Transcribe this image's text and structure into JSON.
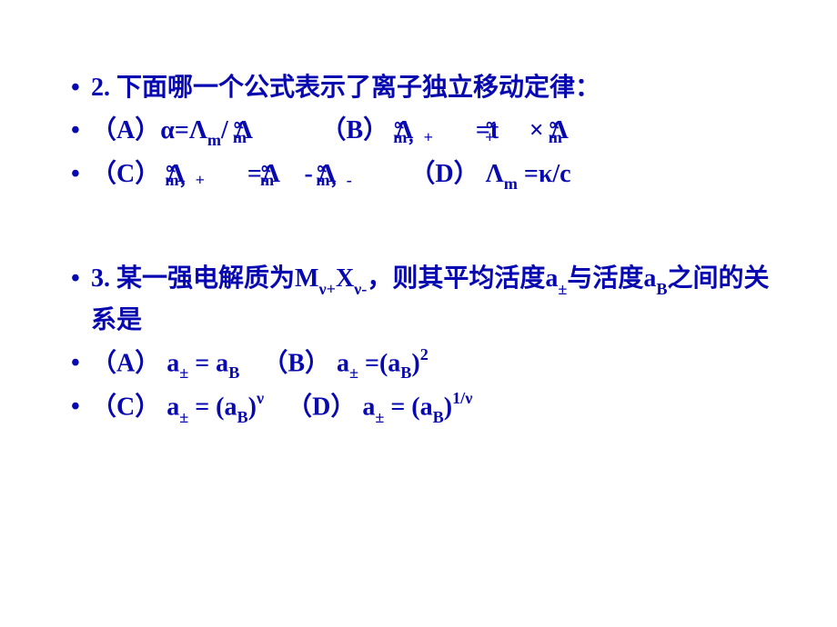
{
  "colors": {
    "text": "#0808b0",
    "background": "#ffffff"
  },
  "typography": {
    "font_family": "SimSun",
    "font_size_pt": 21,
    "font_weight": "bold",
    "line_height": 1.6
  },
  "q2": {
    "prompt": "2. 下面哪一个公式表示了离子独立移动定律：",
    "A": {
      "label": "（A）",
      "text1": "α=Λ",
      "sub1": "m",
      "text2": "/ Λ",
      "sub2": "m",
      "sup2": "∝"
    },
    "B": {
      "label": "（B）",
      "text1": " Λ",
      "sub1": "m，+",
      "sup1": "∝",
      "text2": " =t ",
      "sub2": "+",
      "sup2": "∝",
      "text3": " × Λ",
      "sub3": "m",
      "sup3": "∝"
    },
    "C": {
      "label": "（C）",
      "text1": " Λ",
      "sub1": "m，+",
      "sup1": "∝",
      "text2": " =Λ",
      "sub2": "m",
      "sup2": "∝",
      "text3": " - Λ",
      "sub3": "m，-",
      "sup3": "∝"
    },
    "D": {
      "label": "（D）",
      "text1": " Λ",
      "sub1": "m",
      "text2": " =κ/c"
    }
  },
  "q3": {
    "prompt_p1": "3. 某一强电解质为M",
    "prompt_sub1": "ν+",
    "prompt_p2": "X",
    "prompt_sub2": "ν-",
    "prompt_p3": "，则其平均活度a",
    "prompt_sub3": "±",
    "prompt_p4": "与活度a",
    "prompt_sub4": "B",
    "prompt_p5": "之间的关系是",
    "A": {
      "label": "（A）",
      "text1": " a",
      "sub1": "±",
      "text2": " = a",
      "sub2": "B"
    },
    "B": {
      "label": "（B）",
      "text1": " a",
      "sub1": "±",
      "text2": " =(a",
      "sub2": "B",
      "text3": ")",
      "sup3": "2"
    },
    "C": {
      "label": "（C）",
      "text1": " a",
      "sub1": "±",
      "text2": " = (a",
      "sub2": "B",
      "text3": ")",
      "sup3": "ν"
    },
    "D": {
      "label": "（D）",
      "text1": " a",
      "sub1": "±",
      "text2": " = (a",
      "sub2": "B",
      "text3": ")",
      "sup3": "1/ν"
    }
  }
}
